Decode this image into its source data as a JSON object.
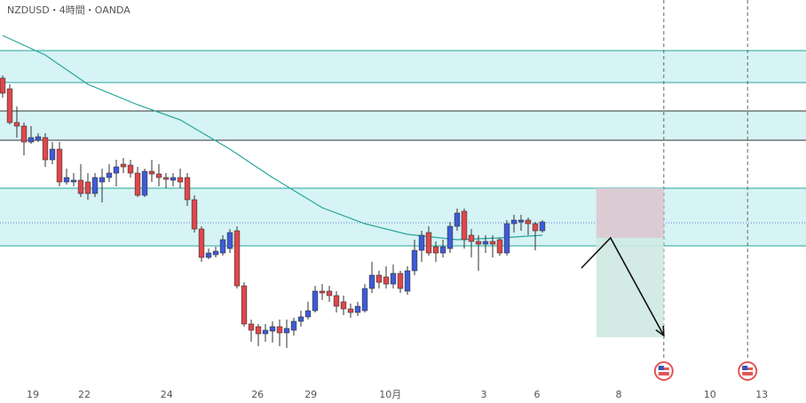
{
  "chart_data": {
    "type": "candlestick",
    "title": "NZDUSD・4時間・OANDA",
    "x": [
      0,
      1,
      2,
      3,
      4,
      5,
      6,
      7,
      8,
      9,
      10,
      11,
      12,
      13,
      14,
      15,
      16,
      17,
      18,
      19,
      20,
      21,
      22,
      23,
      24,
      25,
      26,
      27,
      28,
      29,
      30,
      31,
      32,
      33,
      34,
      35,
      36,
      37,
      38,
      39,
      40,
      41,
      42,
      43,
      44,
      45,
      46,
      47,
      48,
      49,
      50,
      51,
      52,
      53,
      54,
      55,
      56,
      57,
      58,
      59,
      60,
      61,
      62,
      63,
      64,
      65,
      66,
      67,
      68,
      69,
      70,
      71,
      72,
      73,
      74,
      75,
      76
    ],
    "open": [
      0.5912,
      0.59,
      0.5862,
      0.5858,
      0.584,
      0.5842,
      0.5845,
      0.582,
      0.5832,
      0.5795,
      0.5795,
      0.5797,
      0.5795,
      0.5782,
      0.5795,
      0.58,
      0.5805,
      0.5815,
      0.5814,
      0.5805,
      0.578,
      0.5807,
      0.5804,
      0.58,
      0.5797,
      0.58,
      0.58,
      0.5775,
      0.5742,
      0.571,
      0.5713,
      0.5715,
      0.572,
      0.574,
      0.5678,
      0.5635,
      0.5632,
      0.5624,
      0.5627,
      0.5632,
      0.5625,
      0.5628,
      0.5638,
      0.5643,
      0.565,
      0.5672,
      0.5672,
      0.5667,
      0.566,
      0.5652,
      0.5648,
      0.565,
      0.5675,
      0.569,
      0.5688,
      0.568,
      0.5692,
      0.5672,
      0.5695,
      0.5718,
      0.5738,
      0.5722,
      0.5715,
      0.572,
      0.5745,
      0.5762,
      0.5735,
      0.5728,
      0.5725,
      0.5728,
      0.573,
      0.5715,
      0.5748,
      0.575,
      0.5752,
      0.5748,
      0.574
    ],
    "high": [
      0.5915,
      0.5905,
      0.588,
      0.5862,
      0.5858,
      0.585,
      0.585,
      0.584,
      0.584,
      0.581,
      0.5805,
      0.5815,
      0.5805,
      0.5805,
      0.581,
      0.5815,
      0.582,
      0.5822,
      0.582,
      0.5812,
      0.581,
      0.582,
      0.5815,
      0.5805,
      0.5805,
      0.581,
      0.5805,
      0.578,
      0.5745,
      0.572,
      0.5722,
      0.5735,
      0.5742,
      0.5745,
      0.5682,
      0.564,
      0.5635,
      0.5635,
      0.5638,
      0.564,
      0.564,
      0.5642,
      0.565,
      0.566,
      0.5678,
      0.568,
      0.5678,
      0.5672,
      0.5667,
      0.5658,
      0.566,
      0.568,
      0.5705,
      0.5695,
      0.57,
      0.5702,
      0.5695,
      0.57,
      0.573,
      0.574,
      0.5745,
      0.5728,
      0.573,
      0.575,
      0.5765,
      0.5765,
      0.5742,
      0.5735,
      0.5735,
      0.5735,
      0.5732,
      0.5752,
      0.5758,
      0.5758,
      0.5755,
      0.575,
      0.5752
    ],
    "low": [
      0.589,
      0.586,
      0.5845,
      0.5825,
      0.5838,
      0.584,
      0.5812,
      0.5815,
      0.579,
      0.5792,
      0.579,
      0.5778,
      0.5775,
      0.5778,
      0.5772,
      0.5795,
      0.579,
      0.5805,
      0.58,
      0.5778,
      0.5778,
      0.5795,
      0.579,
      0.5788,
      0.579,
      0.5788,
      0.5768,
      0.5738,
      0.5705,
      0.5708,
      0.571,
      0.5712,
      0.5715,
      0.5675,
      0.5632,
      0.5615,
      0.561,
      0.5615,
      0.5614,
      0.561,
      0.5608,
      0.5622,
      0.5632,
      0.564,
      0.5648,
      0.5662,
      0.566,
      0.5648,
      0.5645,
      0.5642,
      0.5644,
      0.5648,
      0.567,
      0.5675,
      0.5675,
      0.5675,
      0.567,
      0.5668,
      0.569,
      0.5705,
      0.5712,
      0.5705,
      0.571,
      0.5715,
      0.574,
      0.572,
      0.571,
      0.5695,
      0.5715,
      0.571,
      0.5712,
      0.5712,
      0.5738,
      0.574,
      0.5735,
      0.5718,
      0.5738
    ],
    "close": [
      0.5895,
      0.5862,
      0.5858,
      0.584,
      0.5845,
      0.5846,
      0.582,
      0.5832,
      0.5795,
      0.58,
      0.5797,
      0.5782,
      0.5782,
      0.58,
      0.58,
      0.5805,
      0.5812,
      0.5812,
      0.5805,
      0.578,
      0.5807,
      0.5804,
      0.58,
      0.5798,
      0.58,
      0.5795,
      0.5775,
      0.5742,
      0.571,
      0.5715,
      0.5717,
      0.573,
      0.5738,
      0.5678,
      0.5635,
      0.5628,
      0.5624,
      0.5628,
      0.5632,
      0.5625,
      0.563,
      0.5638,
      0.5643,
      0.565,
      0.5672,
      0.567,
      0.5667,
      0.5655,
      0.5652,
      0.5648,
      0.5655,
      0.5675,
      0.569,
      0.5682,
      0.568,
      0.5692,
      0.5675,
      0.5695,
      0.5718,
      0.5735,
      0.5715,
      0.5715,
      0.5722,
      0.5745,
      0.576,
      0.573,
      0.5728,
      0.5725,
      0.5728,
      0.5725,
      0.5715,
      0.5748,
      0.5752,
      0.5752,
      0.5748,
      0.574,
      0.575
    ],
    "up_color": "#3d5bd9",
    "down_color": "#e0474c",
    "moving_average": {
      "color": "#26a69a",
      "x": [
        0,
        6,
        12,
        19,
        25,
        32,
        38,
        45,
        51,
        57,
        64,
        70,
        76
      ],
      "values": [
        0.596,
        0.5938,
        0.5905,
        0.5882,
        0.5865,
        0.5832,
        0.58,
        0.5766,
        0.5748,
        0.5736,
        0.573,
        0.5732,
        0.5735
      ]
    },
    "zones": [
      [
        0.5943,
        0.5907
      ],
      [
        0.5875,
        0.5842
      ],
      [
        0.5788,
        0.5723
      ]
    ],
    "zone_line_colors": [
      "#26a69a",
      "#333333",
      "#26a69a"
    ],
    "zone_fill": "#d6f3f5",
    "level": 0.5749,
    "level_color": "#5a7ee0",
    "position": {
      "x": [
        83.6,
        93.1
      ],
      "entry": 0.5732,
      "stop": 0.5788,
      "target": 0.562,
      "stop_color": "#dcc8d0",
      "target_color": "#cfe9e2"
    },
    "arrow": {
      "x": [
        81.5,
        85.6,
        93.1
      ],
      "y": [
        0.5698,
        0.5732,
        0.5622
      ]
    },
    "events": [
      93.1,
      104.9
    ],
    "xlim": [
      -0.375,
      113.125
    ],
    "ylim": [
      0.5546,
      0.6
    ],
    "xticks": [
      {
        "value": 4.25,
        "label": "19"
      },
      {
        "value": 11.5,
        "label": "22"
      },
      {
        "value": 23.1,
        "label": "24"
      },
      {
        "value": 35.9,
        "label": "26"
      },
      {
        "value": 43.4,
        "label": "29"
      },
      {
        "value": 54.6,
        "label": "10月"
      },
      {
        "value": 67.75,
        "label": "3"
      },
      {
        "value": 75.25,
        "label": "6"
      },
      {
        "value": 86.75,
        "label": "8"
      },
      {
        "value": 99.6,
        "label": "10"
      },
      {
        "value": 106.9,
        "label": "13"
      }
    ]
  }
}
